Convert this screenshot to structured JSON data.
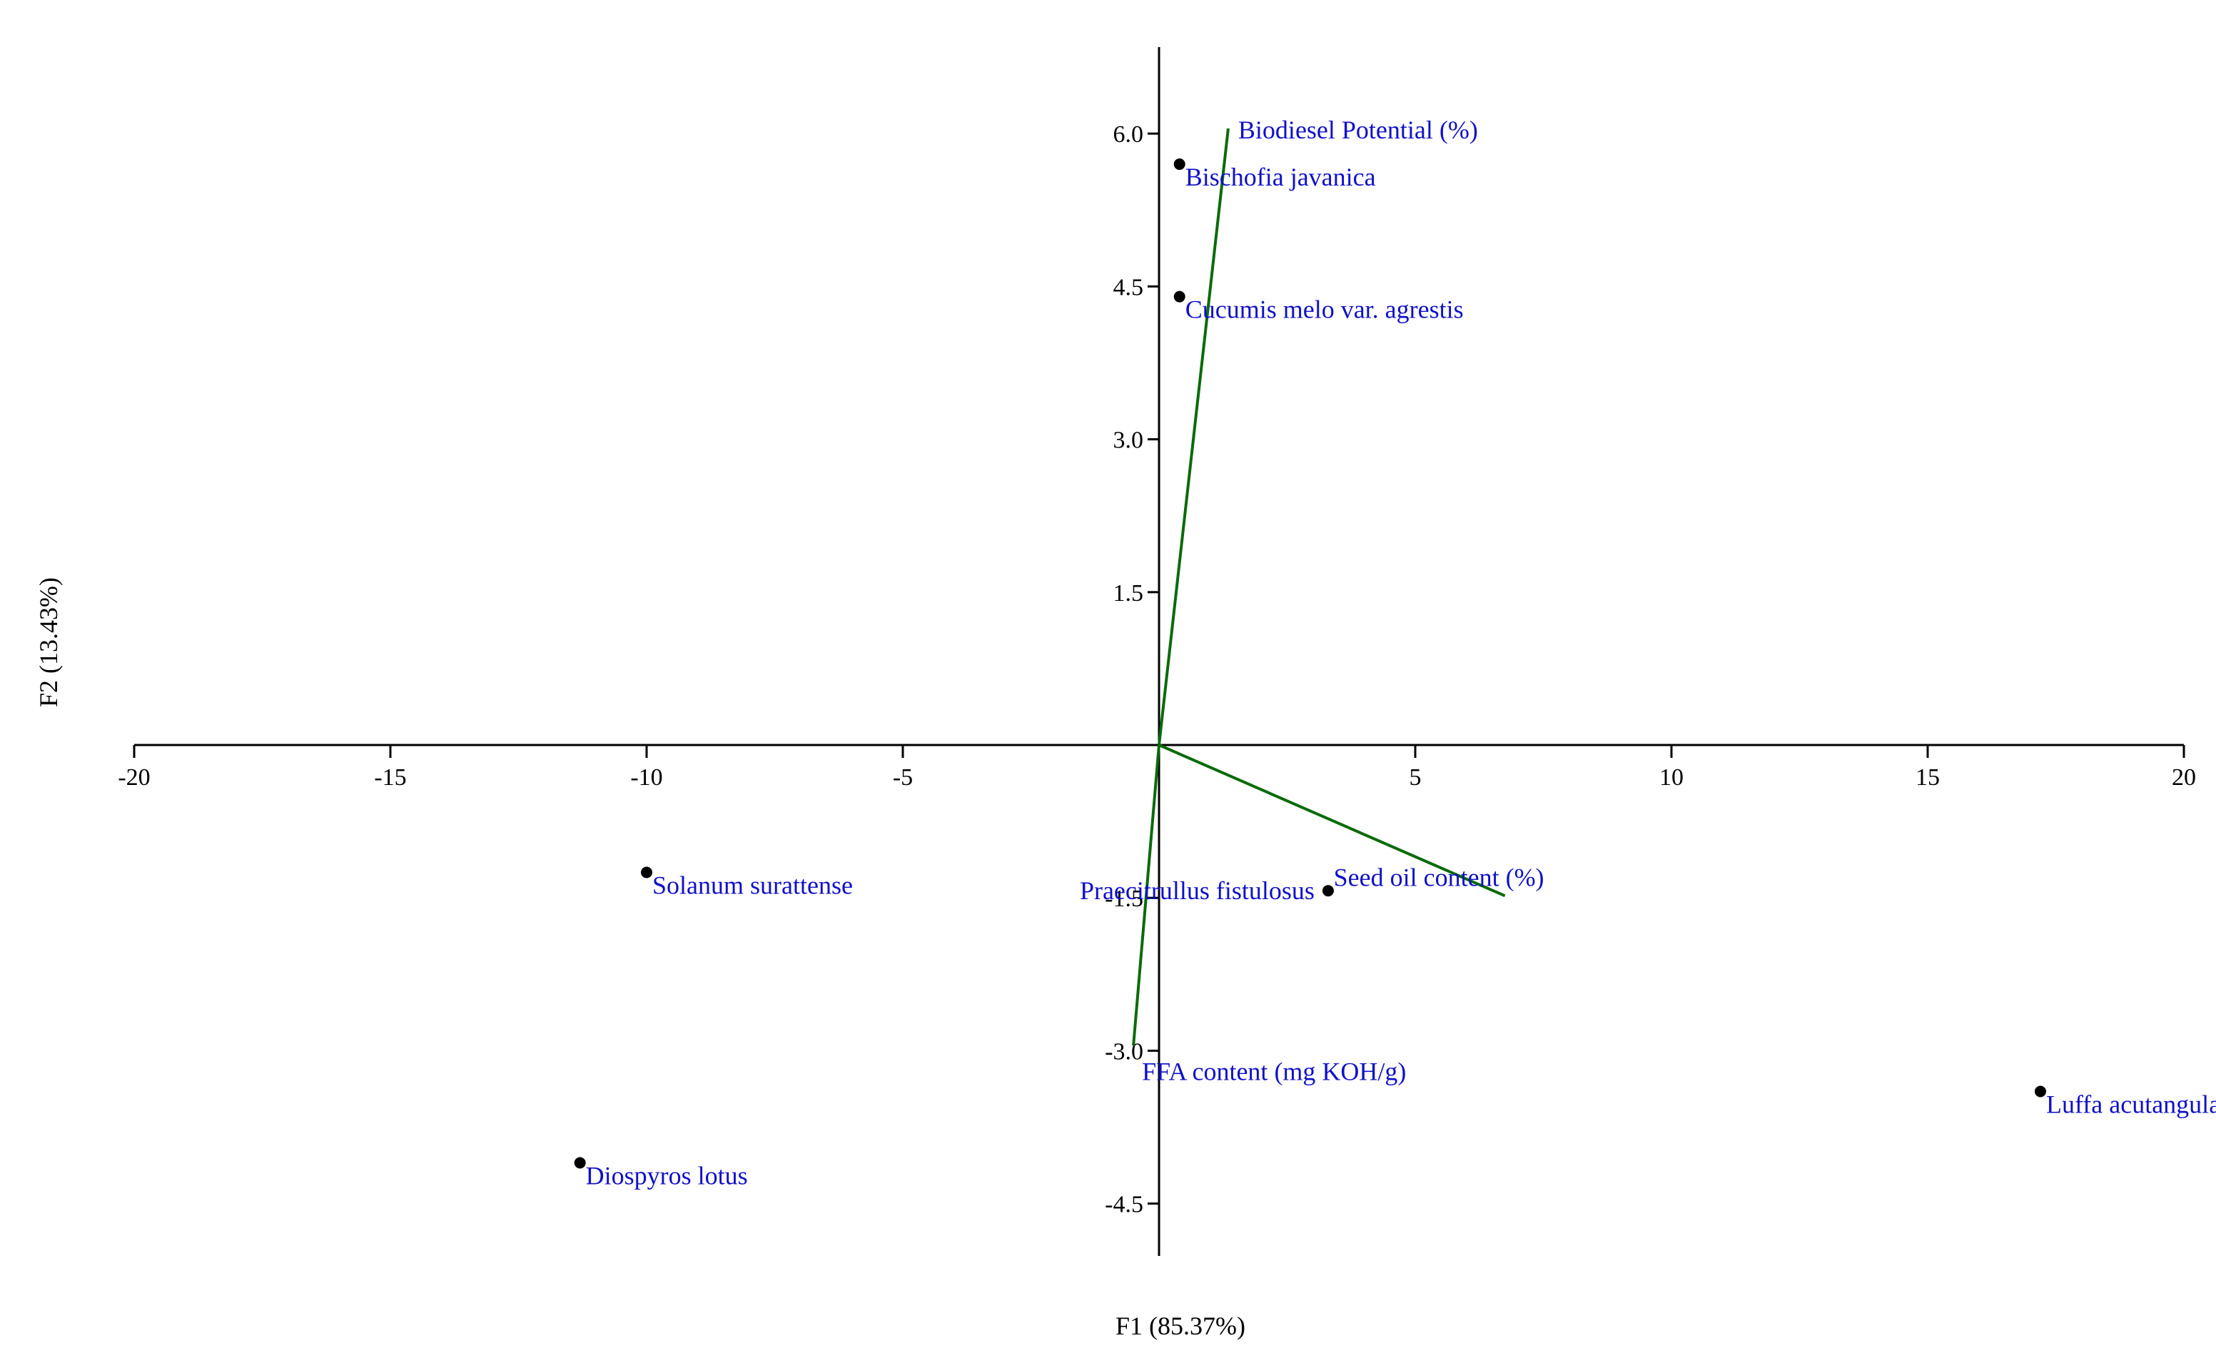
{
  "chart_data": {
    "type": "scatter",
    "subtype": "pca-biplot",
    "title": "",
    "xlabel": "F1 (85.37%)",
    "ylabel": "F2 (13.43%)",
    "xlim": [
      -20,
      20
    ],
    "ylim": [
      -5.0,
      7.0
    ],
    "x_ticks": [
      "-20",
      "-15",
      "-10",
      "-5",
      "5",
      "10",
      "15",
      "20"
    ],
    "x_tick_values": [
      -20,
      -15,
      -10,
      -5,
      5,
      10,
      15,
      20
    ],
    "y_ticks": [
      "6.0",
      "4.5",
      "3.0",
      "1.5",
      "-1.5",
      "-3.0",
      "-4.5"
    ],
    "y_tick_values": [
      6.0,
      4.5,
      3.0,
      1.5,
      -1.5,
      -3.0,
      -4.5
    ],
    "grid": false,
    "observations": [
      {
        "label": "Bischofia javanica",
        "x": 0.4,
        "y": 5.7
      },
      {
        "label": "Cucumis melo var. agrestis",
        "x": 0.4,
        "y": 4.4
      },
      {
        "label": "Solanum surattense",
        "x": -10.0,
        "y": -1.25
      },
      {
        "label": "Praecitrullus fistulosus",
        "x": 3.3,
        "y": -1.43
      },
      {
        "label": "Luffa acutangula",
        "x": 17.2,
        "y": -3.4
      },
      {
        "label": "Diospyros lotus",
        "x": -11.3,
        "y": -4.1
      }
    ],
    "variables": [
      {
        "label": "Biodiesel Potential (%)",
        "x": 1.35,
        "y": 6.05
      },
      {
        "label": "Seed oil content (%)",
        "x": 6.75,
        "y": -1.48
      },
      {
        "label": "FFA content (mg KOH/g)",
        "x": -0.5,
        "y": -2.95
      }
    ],
    "colors": {
      "vector": "#0a6b0a",
      "label": "#1010c8",
      "point": "#000000"
    }
  }
}
